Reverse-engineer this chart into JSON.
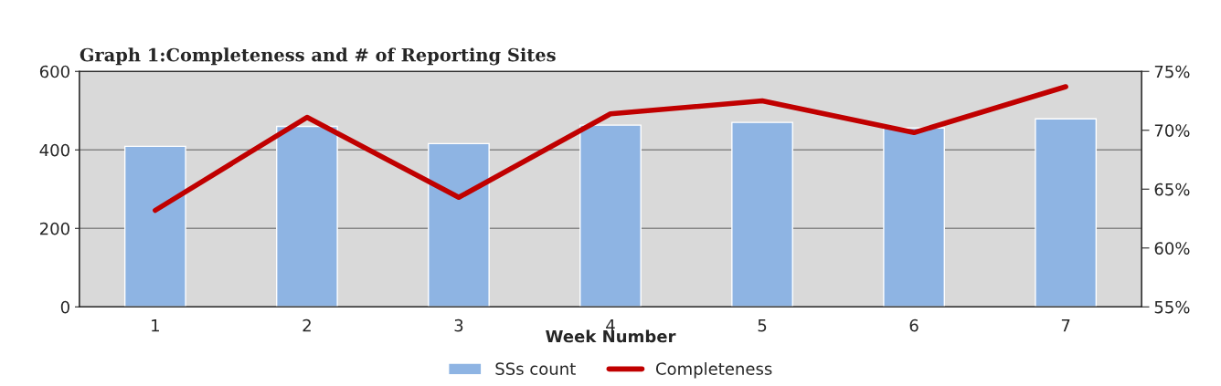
{
  "chart_data": {
    "type": "bar",
    "title": "Graph 1:Completeness and # of Reporting Sites",
    "xlabel": "Week Number",
    "categories": [
      "1",
      "2",
      "3",
      "4",
      "5",
      "6",
      "7"
    ],
    "series": [
      {
        "name": "SSs count",
        "color": "#8eb4e3",
        "values": [
          409,
          460,
          416,
          463,
          470,
          456,
          479
        ]
      },
      {
        "name": "Completeness",
        "type": "line",
        "axis": "y2",
        "color": "#c00000",
        "values": [
          63.2,
          71.1,
          64.3,
          71.4,
          72.5,
          69.8,
          73.7
        ]
      }
    ],
    "ylim": [
      0,
      600
    ],
    "yticks": [
      0,
      200,
      400,
      600
    ],
    "y2lim": [
      55,
      75
    ],
    "y2ticks": [
      {
        "value": 55,
        "label": "55%"
      },
      {
        "value": 60,
        "label": "60%"
      },
      {
        "value": 65,
        "label": "65%"
      },
      {
        "value": 70,
        "label": "70%"
      },
      {
        "value": 75,
        "label": "75%"
      }
    ],
    "grid": "y",
    "legend": "bottom",
    "marker": "none",
    "line_style": "solid"
  }
}
